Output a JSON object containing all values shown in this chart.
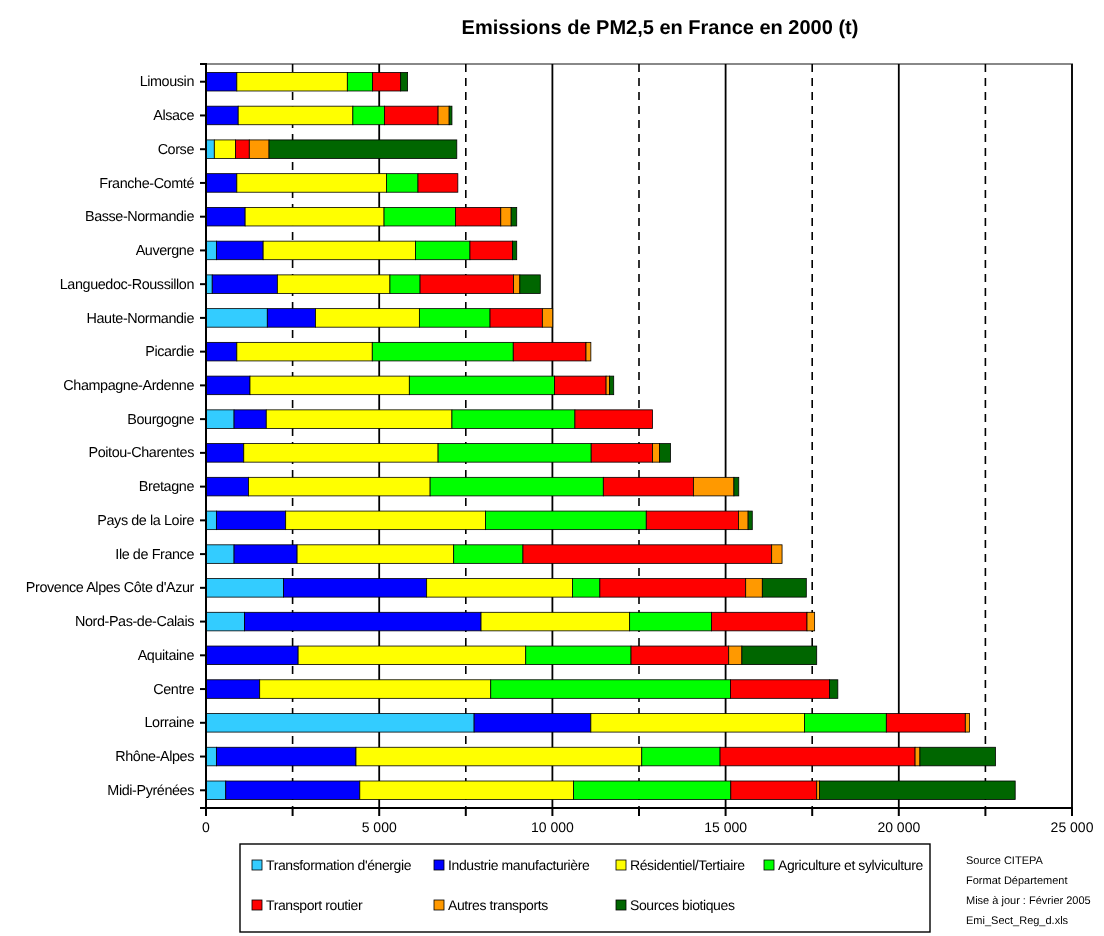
{
  "chart_data": {
    "type": "bar",
    "orientation": "horizontal",
    "stacked": true,
    "title": "Emissions de PM2,5 en France en 2000 (t)",
    "categories": [
      "Limousin",
      "Alsace",
      "Corse",
      "Franche-Comté",
      "Basse-Normandie",
      "Auvergne",
      "Languedoc-Roussillon",
      "Haute-Normandie",
      "Picardie",
      "Champagne-Ardenne",
      "Bourgogne",
      "Poitou-Charentes",
      "Bretagne",
      "Pays de la Loire",
      "Ile de France",
      "Provence Alpes Côte d'Azur",
      "Nord-Pas-de-Calais",
      "Aquitaine",
      "Centre",
      "Lorraine",
      "Rhône-Alpes",
      "Midi-Pyrénées"
    ],
    "series": [
      {
        "name": "Transformation d'énergie",
        "color": "#33ccff",
        "values": [
          0,
          0,
          240,
          0,
          0,
          300,
          180,
          1770,
          0,
          0,
          810,
          0,
          0,
          300,
          810,
          2240,
          1110,
          0,
          0,
          7740,
          300,
          570
        ]
      },
      {
        "name": "Industrie manufacturière",
        "color": "#0000ff",
        "values": [
          890,
          930,
          0,
          890,
          1130,
          1350,
          1880,
          1390,
          890,
          1270,
          930,
          1090,
          1230,
          2000,
          1820,
          4130,
          6830,
          2660,
          1550,
          3370,
          4030,
          3870
        ]
      },
      {
        "name": "Résidentiel/Tertiaire",
        "color": "#ffff00",
        "values": [
          3190,
          3310,
          610,
          4320,
          4010,
          4400,
          3250,
          3000,
          3910,
          4600,
          5360,
          5610,
          5240,
          5770,
          4520,
          4210,
          4290,
          6570,
          6670,
          6170,
          8250,
          6170
        ]
      },
      {
        "name": "Agriculture et sylviculture",
        "color": "#00ff00",
        "values": [
          730,
          910,
          0,
          910,
          2060,
          1570,
          870,
          2040,
          4070,
          4190,
          3550,
          4420,
          5000,
          4640,
          2000,
          790,
          2360,
          3040,
          6920,
          2360,
          2260,
          4540
        ]
      },
      {
        "name": "Transport routier",
        "color": "#ff0000",
        "values": [
          810,
          1550,
          400,
          1150,
          1310,
          1230,
          2700,
          1510,
          2100,
          1490,
          2240,
          1770,
          2600,
          2660,
          7180,
          4210,
          2760,
          2820,
          2860,
          2280,
          5630,
          2480
        ]
      },
      {
        "name": "Autres transports",
        "color": "#ff9900",
        "values": [
          0,
          320,
          570,
          0,
          300,
          0,
          180,
          300,
          140,
          100,
          0,
          200,
          1170,
          280,
          300,
          480,
          220,
          380,
          0,
          120,
          140,
          80
        ]
      },
      {
        "name": "Sources biotiques",
        "color": "#006600",
        "values": [
          200,
          80,
          5420,
          0,
          160,
          120,
          590,
          0,
          0,
          120,
          0,
          320,
          140,
          120,
          0,
          1270,
          0,
          2160,
          240,
          0,
          2180,
          5650
        ]
      }
    ],
    "xlim": [
      0,
      25000
    ],
    "xticks": [
      0,
      {
        "value": 2500,
        "label": null
      },
      {
        "value": 5000,
        "label": "5 000"
      },
      {
        "value": 7500,
        "label": null
      },
      {
        "value": 10000,
        "label": "10 000"
      },
      {
        "value": 12500,
        "label": null
      },
      {
        "value": 15000,
        "label": "15 000"
      },
      {
        "value": 17500,
        "label": null
      },
      {
        "value": 20000,
        "label": "20 000"
      },
      {
        "value": 22500,
        "label": null
      },
      {
        "value": 25000,
        "label": "25 000"
      }
    ],
    "grid": "x",
    "legend": "bottom",
    "annotations": [
      "Source CITEPA",
      "Format Département",
      "Mise à jour : Février 2005",
      "Emi_Sect_Reg_d.xls"
    ]
  }
}
